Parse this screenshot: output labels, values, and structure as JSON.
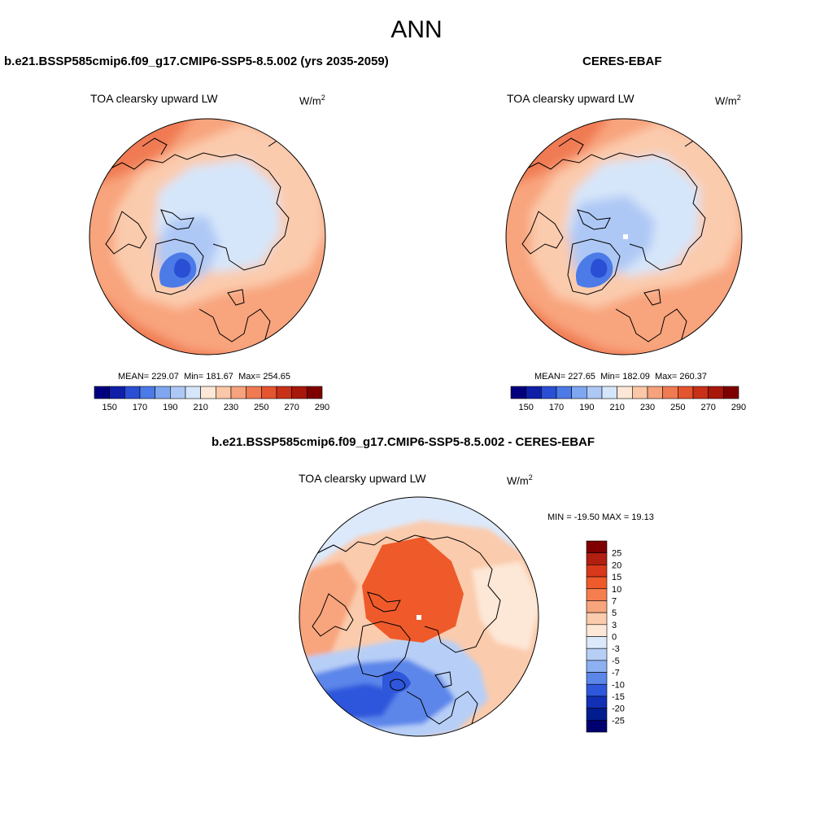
{
  "page": {
    "title": "ANN"
  },
  "chart_data": [
    {
      "type": "heatmap",
      "projection": "north polar stereographic",
      "title": "b.e21.BSSP585cmip6.f09_g17.CMIP6-SSP5-8.5.002 (yrs 2035-2059)",
      "variable": "TOA clearsky upward LW",
      "units_base": "W/m",
      "units_exp": "2",
      "stats": {
        "mean_label": "MEAN=",
        "mean": "229.07",
        "min_label": "Min=",
        "min": "181.67",
        "max_label": "Max=",
        "max": "254.65"
      },
      "colorbar": {
        "orientation": "horizontal",
        "ticks": [
          "150",
          "170",
          "190",
          "210",
          "230",
          "250",
          "270",
          "290"
        ]
      }
    },
    {
      "type": "heatmap",
      "projection": "north polar stereographic",
      "title": "CERES-EBAF",
      "variable": "TOA clearsky upward LW",
      "units_base": "W/m",
      "units_exp": "2",
      "stats": {
        "mean_label": "MEAN=",
        "mean": "227.65",
        "min_label": "Min=",
        "min": "182.09",
        "max_label": "Max=",
        "max": "260.37"
      },
      "colorbar": {
        "orientation": "horizontal",
        "ticks": [
          "150",
          "170",
          "190",
          "210",
          "230",
          "250",
          "270",
          "290"
        ]
      }
    },
    {
      "type": "heatmap",
      "projection": "north polar stereographic",
      "title": "b.e21.BSSP585cmip6.f09_g17.CMIP6-SSP5-8.5.002 - CERES-EBAF",
      "variable": "TOA clearsky upward LW",
      "units_base": "W/m",
      "units_exp": "2",
      "stats_text": "MIN = -19.50 MAX =  19.13",
      "colorbar": {
        "orientation": "vertical",
        "ticks": [
          "25",
          "20",
          "15",
          "10",
          "7",
          "5",
          "3",
          "0",
          "-3",
          "-5",
          "-7",
          "-10",
          "-15",
          "-20",
          "-25"
        ]
      }
    }
  ],
  "palettes": {
    "abs": [
      "#00007f",
      "#0f1fa8",
      "#2a4fd4",
      "#4c7be8",
      "#7fa6f0",
      "#aec8f5",
      "#d6e6fa",
      "#fde7d6",
      "#fac7a8",
      "#f6a27c",
      "#f07a52",
      "#e4542e",
      "#c93018",
      "#a8170a",
      "#7f0000"
    ],
    "diff": [
      "#7f0000",
      "#b01f10",
      "#d8391a",
      "#ef5a2a",
      "#f57e4e",
      "#f8a47d",
      "#fbcbad",
      "#fde7d6",
      "#dce9fb",
      "#b7cff7",
      "#8cb0f2",
      "#5b86ea",
      "#2f57dc",
      "#1130b6",
      "#001c8f",
      "#000070"
    ]
  }
}
